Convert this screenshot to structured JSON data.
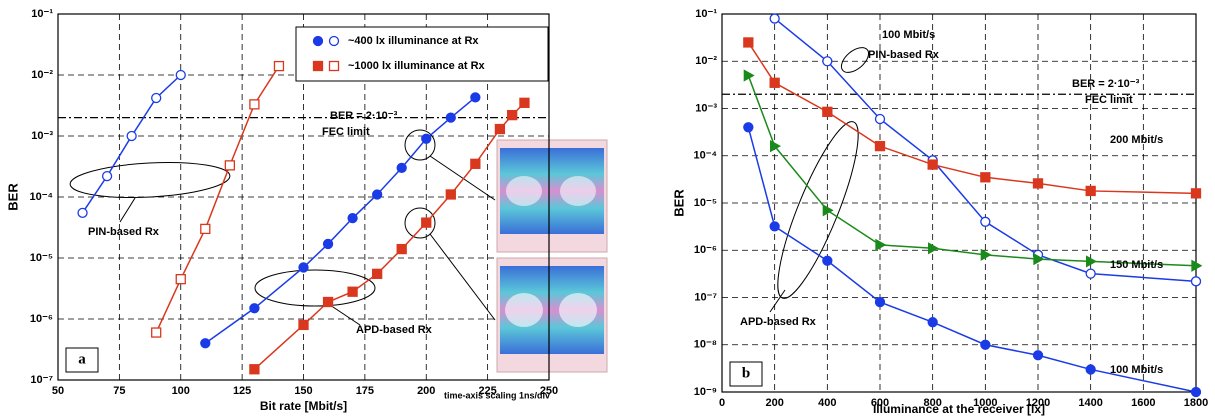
{
  "chart_data": [
    {
      "type": "line",
      "yscale": "log",
      "grid": true,
      "xlabel": "Bit rate [Mbit/s]",
      "ylabel": "BER",
      "panel_label": "a",
      "xlim": [
        50,
        250
      ],
      "xticks": [
        50,
        75,
        100,
        125,
        150,
        175,
        200,
        225,
        250
      ],
      "ylim": [
        1e-07,
        0.1
      ],
      "yticks": [
        {
          "value": 1e-07,
          "label": "10⁻⁷"
        },
        {
          "value": 1e-06,
          "label": "10⁻⁶"
        },
        {
          "value": 1e-05,
          "label": "10⁻⁵"
        },
        {
          "value": 0.0001,
          "label": "10⁻⁴"
        },
        {
          "value": 0.001,
          "label": "10⁻³"
        },
        {
          "value": 0.01,
          "label": "10⁻²"
        },
        {
          "value": 0.1,
          "label": "10⁻¹"
        }
      ],
      "fec_limit": 0.002,
      "annotations": [
        "BER = 2·10⁻³",
        "FEC limit",
        "PIN-based Rx",
        "APD-based Rx",
        "time-axis scaling 1ns/div"
      ],
      "legend": [
        {
          "label": "~400 lx illuminance at Rx",
          "color": "#1a3be6",
          "marker": "circle"
        },
        {
          "label": "~1000 lx illuminance at Rx",
          "color": "#d9381e",
          "marker": "square"
        }
      ],
      "series": [
        {
          "color": "#1a3be6",
          "marker": "circle",
          "filled": false,
          "x": [
            60,
            70,
            80,
            90,
            100
          ],
          "values": [
            5.5e-05,
            0.00022,
            0.001,
            0.0042,
            0.01
          ]
        },
        {
          "color": "#1a3be6",
          "marker": "circle",
          "filled": true,
          "x": [
            110,
            130,
            150,
            160,
            170,
            180,
            190,
            200,
            210,
            220
          ],
          "values": [
            4e-07,
            1.5e-06,
            7e-06,
            1.7e-05,
            4.5e-05,
            0.00011,
            0.0003,
            0.0009,
            0.002,
            0.0043
          ]
        },
        {
          "color": "#d9381e",
          "marker": "square",
          "filled": false,
          "x": [
            90,
            100,
            110,
            120,
            130,
            140
          ],
          "values": [
            6e-07,
            4.5e-06,
            3e-05,
            0.00033,
            0.0033,
            0.014
          ]
        },
        {
          "color": "#d9381e",
          "marker": "square",
          "filled": true,
          "x": [
            130,
            150,
            160,
            170,
            180,
            190,
            200,
            210,
            220,
            230,
            235,
            240
          ],
          "values": [
            1.5e-07,
            8e-07,
            1.9e-06,
            2.8e-06,
            5.5e-06,
            1.4e-05,
            3.8e-05,
            0.00011,
            0.00035,
            0.0013,
            0.0022,
            0.0035
          ]
        }
      ]
    },
    {
      "type": "line",
      "yscale": "log",
      "grid": true,
      "xlabel": "Illuminance at the receiver [lx]",
      "ylabel": "BER",
      "panel_label": "b",
      "xlim": [
        0,
        1800
      ],
      "xticks": [
        0,
        200,
        400,
        600,
        800,
        1000,
        1200,
        1400,
        1600,
        1800
      ],
      "ylim": [
        1e-09,
        0.1
      ],
      "yticks": [
        {
          "value": 1e-09,
          "label": "10⁻⁹"
        },
        {
          "value": 1e-08,
          "label": "10⁻⁸"
        },
        {
          "value": 1e-07,
          "label": "10⁻⁷"
        },
        {
          "value": 1e-06,
          "label": "10⁻⁶"
        },
        {
          "value": 1e-05,
          "label": "10⁻⁵"
        },
        {
          "value": 0.0001,
          "label": "10⁻⁴"
        },
        {
          "value": 0.001,
          "label": "10⁻³"
        },
        {
          "value": 0.01,
          "label": "10⁻²"
        },
        {
          "value": 0.1,
          "label": "10⁻¹"
        }
      ],
      "fec_limit": 0.002,
      "annotations": [
        "PIN-based Rx",
        "BER = 2·10⁻³",
        "FEC limit",
        "APD-based Rx"
      ],
      "series": [
        {
          "name": "100 Mbit/s",
          "color": "#1a3be6",
          "marker": "circle",
          "filled": false,
          "x": [
            200,
            400,
            600,
            800,
            1000,
            1200,
            1400,
            1800
          ],
          "values": [
            0.08,
            0.01,
            0.0006,
            8e-05,
            4e-06,
            8e-07,
            3.2e-07,
            2.2e-07
          ]
        },
        {
          "name": "200 Mbit/s",
          "color": "#d9381e",
          "marker": "square",
          "filled": true,
          "x": [
            100,
            200,
            400,
            600,
            800,
            1000,
            1200,
            1400,
            1800
          ],
          "values": [
            0.025,
            0.0035,
            0.00085,
            0.00016,
            6.5e-05,
            3.5e-05,
            2.6e-05,
            1.8e-05,
            1.6e-05
          ]
        },
        {
          "name": "150 Mbit/s",
          "color": "#1a8a1a",
          "marker": "triangle",
          "filled": true,
          "x": [
            100,
            200,
            400,
            600,
            800,
            1000,
            1200,
            1400,
            1800
          ],
          "values": [
            0.005,
            0.00016,
            7e-06,
            1.3e-06,
            1.1e-06,
            8e-07,
            6.5e-07,
            5.8e-07,
            4.7e-07
          ]
        },
        {
          "name": "100 Mbit/s",
          "color": "#1a3be6",
          "marker": "circle",
          "filled": true,
          "x": [
            100,
            200,
            400,
            600,
            800,
            1000,
            1200,
            1400,
            1800
          ],
          "values": [
            0.0004,
            3.2e-06,
            6e-07,
            8e-08,
            3e-08,
            1e-08,
            6e-09,
            3e-09,
            1e-09
          ]
        }
      ]
    }
  ]
}
